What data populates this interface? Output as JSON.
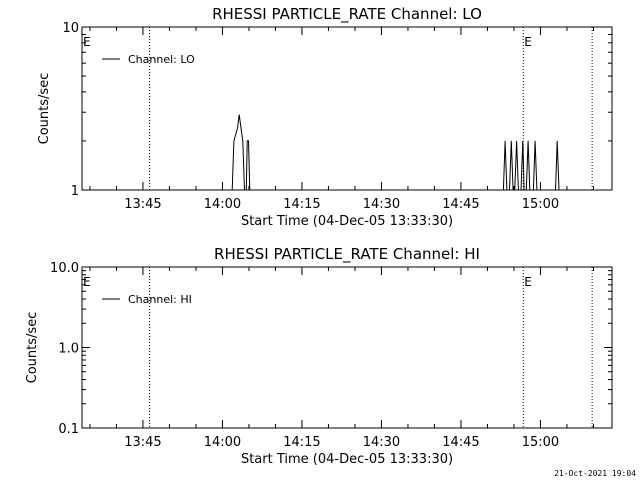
{
  "footer": {
    "timestamp": "21-Oct-2021 19:04"
  },
  "chart_data": [
    {
      "type": "line",
      "title": "RHESSI PARTICLE_RATE Channel: LO",
      "xlabel": "Start Time (04-Dec-05 13:33:30)",
      "ylabel": "Counts/sec",
      "yscale": "log",
      "ylim": [
        1,
        10
      ],
      "yticks": [
        {
          "value": 1,
          "label": "1"
        },
        {
          "value": 10,
          "label": "10"
        }
      ],
      "xlim": [
        "13:33:30",
        "15:13:30"
      ],
      "xticks": [
        {
          "value": "13:45",
          "label": "13:45"
        },
        {
          "value": "14:00",
          "label": "14:00"
        },
        {
          "value": "14:15",
          "label": "14:15"
        },
        {
          "value": "14:30",
          "label": "14:30"
        },
        {
          "value": "14:45",
          "label": "14:45"
        },
        {
          "value": "15:00",
          "label": "15:00"
        }
      ],
      "legend": {
        "placement": "top-left",
        "entries": [
          "Channel: LO"
        ]
      },
      "markers": [
        {
          "time": "13:33:30",
          "label": "E"
        },
        {
          "time": "13:46:15",
          "label": ""
        },
        {
          "time": "14:56:45",
          "label": "E"
        },
        {
          "time": "15:09:45",
          "label": ""
        }
      ],
      "series": [
        {
          "name": "Channel: LO",
          "points": [
            [
              "14:01:50",
              1
            ],
            [
              "14:02:10",
              2
            ],
            [
              "14:02:50",
              2.4
            ],
            [
              "14:03:10",
              2.9
            ],
            [
              "14:03:30",
              2.4
            ],
            [
              "14:03:50",
              2
            ],
            [
              "14:04:10",
              1
            ],
            [
              "14:04:30",
              1
            ],
            [
              "14:04:40",
              2
            ],
            [
              "14:04:55",
              2
            ],
            [
              "14:05:10",
              1
            ],
            [
              "14:53:00",
              1
            ],
            [
              "14:53:20",
              2
            ],
            [
              "14:53:40",
              1
            ],
            [
              "14:54:10",
              1
            ],
            [
              "14:54:30",
              2
            ],
            [
              "14:54:50",
              1
            ],
            [
              "14:55:10",
              1
            ],
            [
              "14:55:30",
              2
            ],
            [
              "14:55:50",
              1
            ],
            [
              "14:56:20",
              1
            ],
            [
              "14:56:40",
              2
            ],
            [
              "14:56:55",
              1
            ],
            [
              "14:57:20",
              1
            ],
            [
              "14:57:40",
              2
            ],
            [
              "14:58:00",
              1
            ],
            [
              "14:58:40",
              1
            ],
            [
              "14:59:00",
              2
            ],
            [
              "14:59:20",
              1
            ],
            [
              "15:02:50",
              1
            ],
            [
              "15:03:10",
              2
            ],
            [
              "15:03:30",
              1
            ]
          ]
        }
      ]
    },
    {
      "type": "line",
      "title": "RHESSI PARTICLE_RATE Channel: HI",
      "xlabel": "Start Time (04-Dec-05 13:33:30)",
      "ylabel": "Counts/sec",
      "yscale": "log",
      "ylim": [
        0.1,
        10
      ],
      "yticks": [
        {
          "value": 0.1,
          "label": "0.1"
        },
        {
          "value": 1,
          "label": "1.0"
        },
        {
          "value": 10,
          "label": "10.0"
        }
      ],
      "xlim": [
        "13:33:30",
        "15:13:30"
      ],
      "xticks": [
        {
          "value": "13:45",
          "label": "13:45"
        },
        {
          "value": "14:00",
          "label": "14:00"
        },
        {
          "value": "14:15",
          "label": "14:15"
        },
        {
          "value": "14:30",
          "label": "14:30"
        },
        {
          "value": "14:45",
          "label": "14:45"
        },
        {
          "value": "15:00",
          "label": "15:00"
        }
      ],
      "legend": {
        "placement": "top-left",
        "entries": [
          "Channel: HI"
        ]
      },
      "markers": [
        {
          "time": "13:33:30",
          "label": "E"
        },
        {
          "time": "13:46:15",
          "label": ""
        },
        {
          "time": "14:56:45",
          "label": "E"
        },
        {
          "time": "15:09:45",
          "label": ""
        }
      ],
      "series": [
        {
          "name": "Channel: HI",
          "points": []
        }
      ]
    }
  ]
}
